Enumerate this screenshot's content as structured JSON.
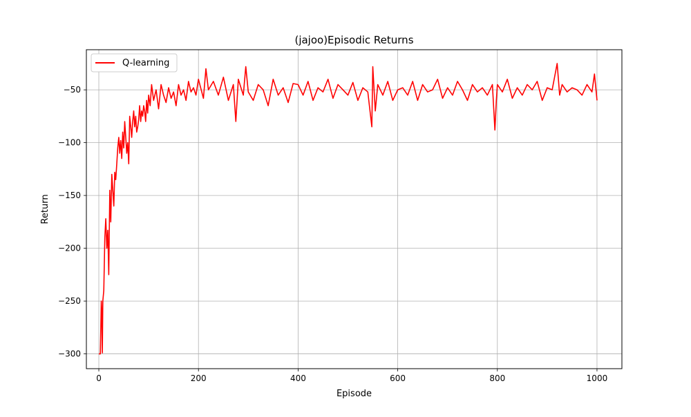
{
  "chart_data": {
    "type": "line",
    "title": "(jajoo)Episodic Returns",
    "xlabel": "Episode",
    "ylabel": "Return",
    "xlim": [
      -25,
      1050
    ],
    "ylim": [
      -314,
      -12
    ],
    "xticks": [
      0,
      200,
      400,
      600,
      800,
      1000
    ],
    "yticks": [
      -300,
      -250,
      -200,
      -150,
      -100,
      -50
    ],
    "xtick_labels": [
      "0",
      "200",
      "400",
      "600",
      "800",
      "1000"
    ],
    "ytick_labels": [
      "−300",
      "−250",
      "−200",
      "−150",
      "−100",
      "−50"
    ],
    "grid": true,
    "legend_position": "top-left",
    "series": [
      {
        "name": "Q-learning",
        "color": "#ff0000",
        "x": [
          0,
          3,
          5,
          6,
          7,
          8,
          10,
          12,
          14,
          16,
          18,
          20,
          22,
          24,
          26,
          28,
          30,
          32,
          34,
          36,
          38,
          40,
          42,
          44,
          46,
          48,
          50,
          52,
          54,
          56,
          58,
          60,
          62,
          64,
          66,
          68,
          70,
          72,
          74,
          76,
          78,
          80,
          82,
          84,
          86,
          88,
          90,
          92,
          94,
          96,
          98,
          100,
          103,
          106,
          110,
          115,
          120,
          125,
          130,
          135,
          140,
          145,
          150,
          155,
          160,
          165,
          170,
          175,
          180,
          185,
          190,
          195,
          200,
          210,
          215,
          220,
          230,
          240,
          250,
          260,
          270,
          275,
          280,
          290,
          295,
          300,
          310,
          320,
          330,
          340,
          350,
          360,
          370,
          380,
          390,
          400,
          410,
          420,
          430,
          440,
          450,
          460,
          470,
          480,
          490,
          500,
          510,
          520,
          530,
          540,
          548,
          550,
          555,
          560,
          570,
          580,
          590,
          600,
          610,
          620,
          630,
          640,
          650,
          660,
          670,
          680,
          690,
          700,
          710,
          720,
          730,
          740,
          750,
          760,
          770,
          780,
          790,
          795,
          798,
          800,
          810,
          820,
          830,
          840,
          850,
          860,
          870,
          880,
          890,
          900,
          910,
          920,
          925,
          930,
          940,
          950,
          960,
          970,
          980,
          990,
          995,
          1000
        ],
        "values": [
          -300,
          -300,
          -250,
          -260,
          -299,
          -250,
          -240,
          -190,
          -172,
          -200,
          -183,
          -225,
          -145,
          -175,
          -130,
          -145,
          -160,
          -128,
          -135,
          -120,
          -105,
          -95,
          -110,
          -98,
          -115,
          -90,
          -105,
          -80,
          -95,
          -110,
          -100,
          -120,
          -75,
          -85,
          -95,
          -80,
          -70,
          -85,
          -75,
          -90,
          -85,
          -78,
          -65,
          -80,
          -70,
          -75,
          -65,
          -70,
          -80,
          -60,
          -72,
          -55,
          -65,
          -45,
          -60,
          -50,
          -68,
          -45,
          -55,
          -62,
          -48,
          -58,
          -52,
          -65,
          -45,
          -55,
          -50,
          -60,
          -42,
          -52,
          -48,
          -55,
          -40,
          -58,
          -30,
          -50,
          -42,
          -55,
          -38,
          -60,
          -45,
          -80,
          -40,
          -55,
          -28,
          -52,
          -60,
          -45,
          -50,
          -65,
          -40,
          -55,
          -48,
          -62,
          -44,
          -45,
          -55,
          -42,
          -60,
          -48,
          -52,
          -40,
          -58,
          -45,
          -50,
          -55,
          -43,
          -60,
          -48,
          -52,
          -85,
          -28,
          -70,
          -45,
          -55,
          -42,
          -60,
          -50,
          -48,
          -55,
          -42,
          -60,
          -45,
          -52,
          -50,
          -40,
          -58,
          -48,
          -55,
          -42,
          -50,
          -60,
          -45,
          -52,
          -48,
          -55,
          -45,
          -88,
          -60,
          -45,
          -52,
          -40,
          -58,
          -48,
          -55,
          -45,
          -50,
          -42,
          -60,
          -48,
          -50,
          -25,
          -55,
          -45,
          -52,
          -48,
          -50,
          -55,
          -45,
          -52,
          -35,
          -60
        ]
      }
    ]
  }
}
